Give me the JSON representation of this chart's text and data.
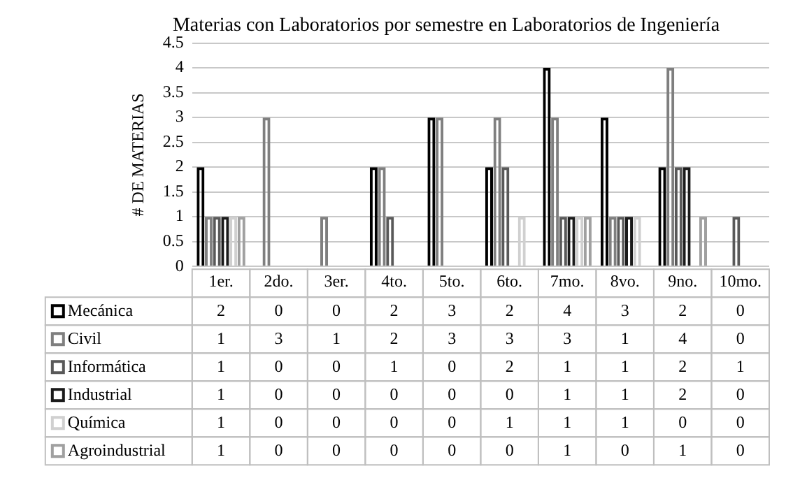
{
  "chart_data": {
    "type": "bar",
    "title": "Materias con Laboratorios por semestre en Laboratorios de Ingeniería",
    "ylabel": "# DE MATERIAS",
    "categories": [
      "1er.",
      "2do.",
      "3er.",
      "4to.",
      "5to.",
      "6to.",
      "7mo.",
      "8vo.",
      "9no.",
      "10mo."
    ],
    "series": [
      {
        "name": "Mecánica",
        "color": "#000000",
        "values": [
          2,
          0,
          0,
          2,
          3,
          2,
          4,
          3,
          2,
          0
        ]
      },
      {
        "name": "Civil",
        "color": "#7f7f7f",
        "values": [
          1,
          3,
          1,
          2,
          3,
          3,
          3,
          1,
          4,
          0
        ]
      },
      {
        "name": "Informática",
        "color": "#595959",
        "values": [
          1,
          0,
          0,
          1,
          0,
          2,
          1,
          1,
          2,
          1
        ]
      },
      {
        "name": "Industrial",
        "color": "#1a1a1a",
        "values": [
          1,
          0,
          0,
          0,
          0,
          0,
          1,
          1,
          2,
          0
        ]
      },
      {
        "name": "Química",
        "color": "#d0d0d0",
        "values": [
          1,
          0,
          0,
          0,
          0,
          1,
          1,
          1,
          0,
          0
        ]
      },
      {
        "name": "Agroindustrial",
        "color": "#a0a0a0",
        "values": [
          1,
          0,
          0,
          0,
          0,
          0,
          1,
          0,
          1,
          0
        ]
      }
    ],
    "ylim": [
      0,
      4.5
    ],
    "yticks": [
      0,
      0.5,
      1,
      1.5,
      2,
      2.5,
      3,
      3.5,
      4,
      4.5
    ],
    "grid": "y",
    "legend": "bottom",
    "data_labels": true
  }
}
